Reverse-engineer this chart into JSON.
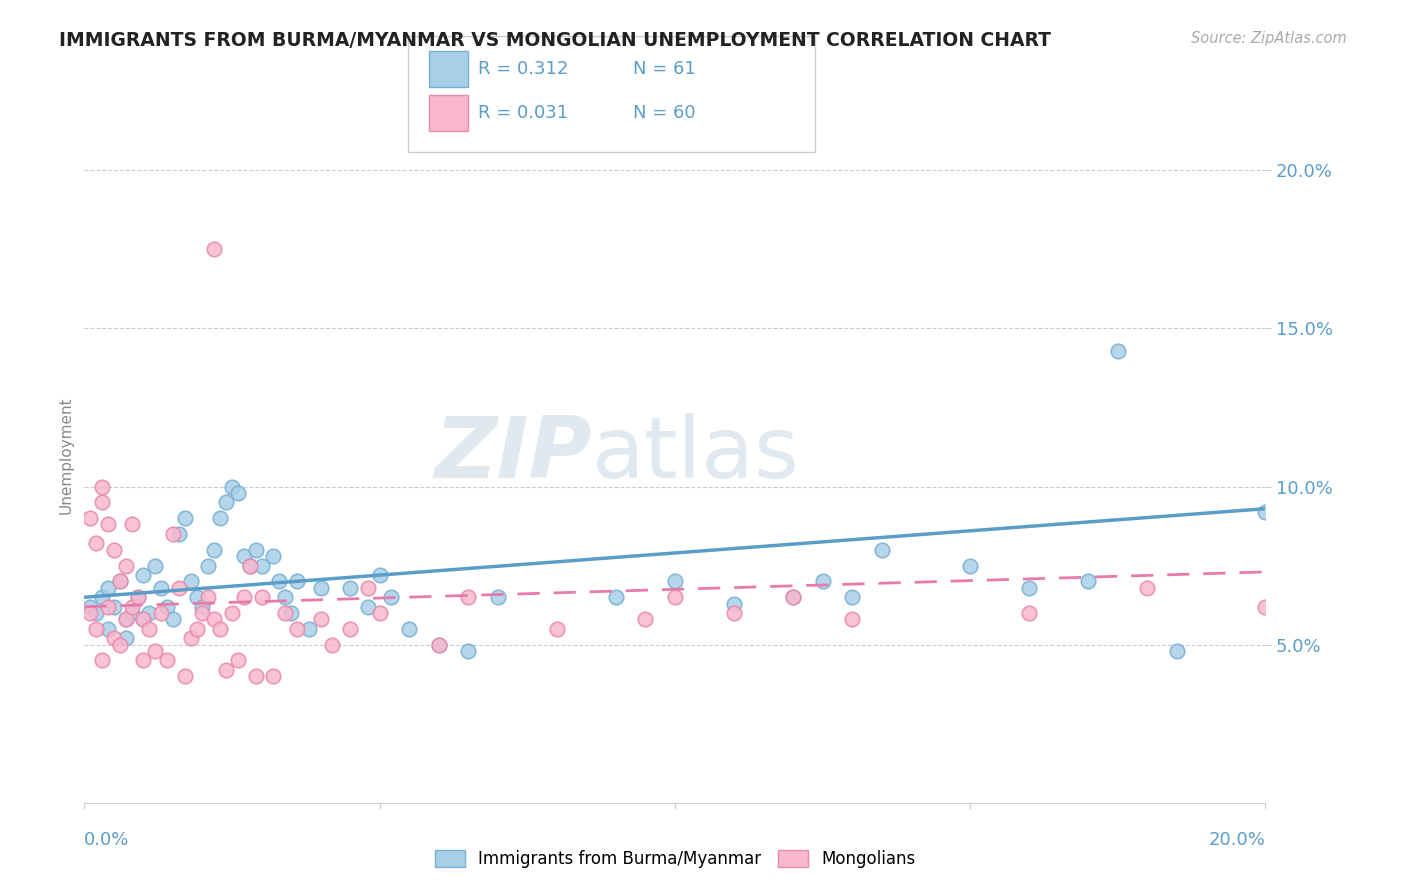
{
  "title": "IMMIGRANTS FROM BURMA/MYANMAR VS MONGOLIAN UNEMPLOYMENT CORRELATION CHART",
  "source": "Source: ZipAtlas.com",
  "ylabel": "Unemployment",
  "watermark": "ZIPatlas",
  "legend_blue_r": "0.312",
  "legend_blue_n": "61",
  "legend_pink_r": "0.031",
  "legend_pink_n": "60",
  "blue_label": "Immigrants from Burma/Myanmar",
  "pink_label": "Mongolians",
  "xlim": [
    0.0,
    0.2
  ],
  "ylim": [
    0.0,
    0.22
  ],
  "yticks": [
    0.05,
    0.1,
    0.15,
    0.2
  ],
  "ytick_labels": [
    "5.0%",
    "10.0%",
    "15.0%",
    "20.0%"
  ],
  "xtick_labels": [
    "0.0%",
    "20.0%"
  ],
  "blue_color": "#a8cfe8",
  "pink_color": "#f9b8ce",
  "blue_edge_color": "#7ab0d4",
  "pink_edge_color": "#e88aab",
  "blue_line_color": "#5b9dc9",
  "pink_line_color": "#e87aaa",
  "tick_label_color": "#5b9dc9",
  "blue_scatter": [
    [
      0.001,
      0.062
    ],
    [
      0.002,
      0.06
    ],
    [
      0.003,
      0.065
    ],
    [
      0.004,
      0.068
    ],
    [
      0.004,
      0.055
    ],
    [
      0.005,
      0.062
    ],
    [
      0.006,
      0.07
    ],
    [
      0.007,
      0.058
    ],
    [
      0.007,
      0.052
    ],
    [
      0.008,
      0.06
    ],
    [
      0.009,
      0.065
    ],
    [
      0.01,
      0.058
    ],
    [
      0.01,
      0.072
    ],
    [
      0.011,
      0.06
    ],
    [
      0.012,
      0.075
    ],
    [
      0.013,
      0.068
    ],
    [
      0.014,
      0.062
    ],
    [
      0.015,
      0.058
    ],
    [
      0.016,
      0.085
    ],
    [
      0.017,
      0.09
    ],
    [
      0.018,
      0.07
    ],
    [
      0.019,
      0.065
    ],
    [
      0.02,
      0.062
    ],
    [
      0.021,
      0.075
    ],
    [
      0.022,
      0.08
    ],
    [
      0.023,
      0.09
    ],
    [
      0.024,
      0.095
    ],
    [
      0.025,
      0.1
    ],
    [
      0.026,
      0.098
    ],
    [
      0.027,
      0.078
    ],
    [
      0.028,
      0.075
    ],
    [
      0.029,
      0.08
    ],
    [
      0.03,
      0.075
    ],
    [
      0.032,
      0.078
    ],
    [
      0.033,
      0.07
    ],
    [
      0.034,
      0.065
    ],
    [
      0.035,
      0.06
    ],
    [
      0.036,
      0.07
    ],
    [
      0.038,
      0.055
    ],
    [
      0.04,
      0.068
    ],
    [
      0.045,
      0.068
    ],
    [
      0.048,
      0.062
    ],
    [
      0.05,
      0.072
    ],
    [
      0.052,
      0.065
    ],
    [
      0.055,
      0.055
    ],
    [
      0.06,
      0.05
    ],
    [
      0.065,
      0.048
    ],
    [
      0.07,
      0.065
    ],
    [
      0.09,
      0.065
    ],
    [
      0.1,
      0.07
    ],
    [
      0.11,
      0.063
    ],
    [
      0.12,
      0.065
    ],
    [
      0.125,
      0.07
    ],
    [
      0.13,
      0.065
    ],
    [
      0.135,
      0.08
    ],
    [
      0.15,
      0.075
    ],
    [
      0.16,
      0.068
    ],
    [
      0.17,
      0.07
    ],
    [
      0.175,
      0.143
    ],
    [
      0.185,
      0.048
    ],
    [
      0.2,
      0.092
    ]
  ],
  "pink_scatter": [
    [
      0.001,
      0.06
    ],
    [
      0.001,
      0.09
    ],
    [
      0.002,
      0.055
    ],
    [
      0.002,
      0.082
    ],
    [
      0.003,
      0.045
    ],
    [
      0.003,
      0.095
    ],
    [
      0.003,
      0.1
    ],
    [
      0.004,
      0.062
    ],
    [
      0.004,
      0.088
    ],
    [
      0.005,
      0.08
    ],
    [
      0.005,
      0.052
    ],
    [
      0.006,
      0.05
    ],
    [
      0.006,
      0.07
    ],
    [
      0.007,
      0.058
    ],
    [
      0.007,
      0.075
    ],
    [
      0.008,
      0.062
    ],
    [
      0.008,
      0.088
    ],
    [
      0.009,
      0.065
    ],
    [
      0.01,
      0.058
    ],
    [
      0.01,
      0.045
    ],
    [
      0.011,
      0.055
    ],
    [
      0.012,
      0.048
    ],
    [
      0.013,
      0.06
    ],
    [
      0.014,
      0.045
    ],
    [
      0.015,
      0.085
    ],
    [
      0.016,
      0.068
    ],
    [
      0.017,
      0.04
    ],
    [
      0.018,
      0.052
    ],
    [
      0.019,
      0.055
    ],
    [
      0.02,
      0.06
    ],
    [
      0.021,
      0.065
    ],
    [
      0.022,
      0.058
    ],
    [
      0.022,
      0.175
    ],
    [
      0.023,
      0.055
    ],
    [
      0.024,
      0.042
    ],
    [
      0.025,
      0.06
    ],
    [
      0.026,
      0.045
    ],
    [
      0.027,
      0.065
    ],
    [
      0.028,
      0.075
    ],
    [
      0.029,
      0.04
    ],
    [
      0.03,
      0.065
    ],
    [
      0.032,
      0.04
    ],
    [
      0.034,
      0.06
    ],
    [
      0.036,
      0.055
    ],
    [
      0.04,
      0.058
    ],
    [
      0.042,
      0.05
    ],
    [
      0.045,
      0.055
    ],
    [
      0.048,
      0.068
    ],
    [
      0.05,
      0.06
    ],
    [
      0.06,
      0.05
    ],
    [
      0.065,
      0.065
    ],
    [
      0.08,
      0.055
    ],
    [
      0.095,
      0.058
    ],
    [
      0.1,
      0.065
    ],
    [
      0.11,
      0.06
    ],
    [
      0.12,
      0.065
    ],
    [
      0.13,
      0.058
    ],
    [
      0.16,
      0.06
    ],
    [
      0.18,
      0.068
    ],
    [
      0.2,
      0.062
    ]
  ],
  "blue_line_x": [
    0.0,
    0.2
  ],
  "blue_line_y": [
    0.065,
    0.093
  ],
  "pink_line_x": [
    0.0,
    0.2
  ],
  "pink_line_y": [
    0.062,
    0.073
  ],
  "background_color": "#ffffff",
  "grid_color": "#cccccc",
  "title_color": "#333333",
  "watermark_color": "#e0e8f0"
}
